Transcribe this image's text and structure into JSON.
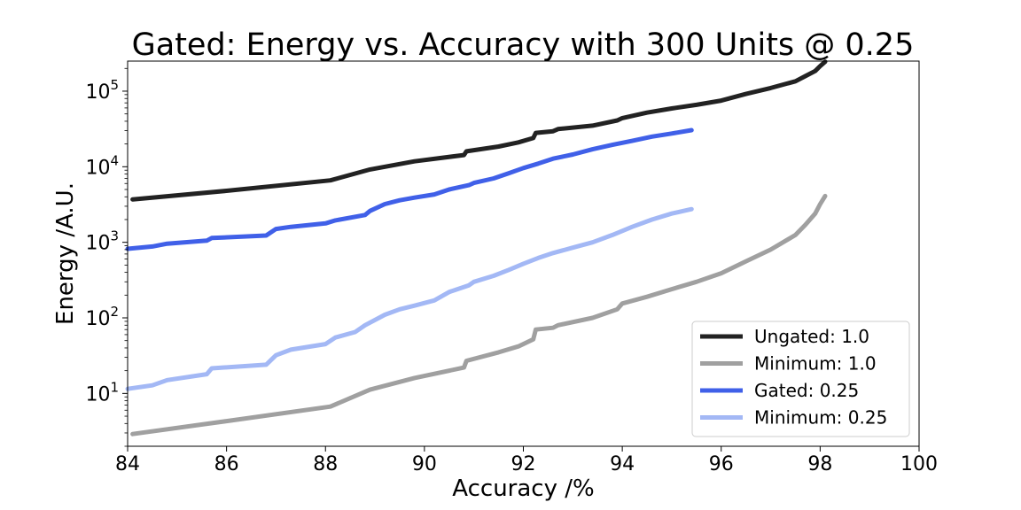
{
  "chart_data": {
    "type": "line",
    "title": "Gated: Energy vs. Accuracy with 300 Units @ 0.25",
    "xlabel": "Accuracy /%",
    "ylabel": "Energy /A.U.",
    "xlim": [
      84,
      100
    ],
    "ylim": [
      2,
      250000
    ],
    "yscale": "log",
    "grid": false,
    "legend_position": "lower-right",
    "x_ticks": [
      84,
      86,
      88,
      90,
      92,
      94,
      96,
      98,
      100
    ],
    "y_ticks": [
      {
        "value": 10,
        "base": "10",
        "exp": "1"
      },
      {
        "value": 100,
        "base": "10",
        "exp": "2"
      },
      {
        "value": 1000,
        "base": "10",
        "exp": "3"
      },
      {
        "value": 10000,
        "base": "10",
        "exp": "4"
      },
      {
        "value": 100000,
        "base": "10",
        "exp": "5"
      }
    ],
    "series": [
      {
        "name": "Ungated: 1.0",
        "color": "#222222",
        "points": [
          [
            84.1,
            3700
          ],
          [
            86.0,
            4800
          ],
          [
            88.1,
            6600
          ],
          [
            88.9,
            9200
          ],
          [
            89.8,
            11800
          ],
          [
            90.8,
            14300
          ],
          [
            90.85,
            16000
          ],
          [
            91.5,
            18500
          ],
          [
            91.9,
            21000
          ],
          [
            92.2,
            24000
          ],
          [
            92.25,
            28000
          ],
          [
            92.6,
            29500
          ],
          [
            92.7,
            31500
          ],
          [
            93.4,
            35000
          ],
          [
            93.9,
            41000
          ],
          [
            94.0,
            44000
          ],
          [
            94.5,
            52000
          ],
          [
            95.0,
            59000
          ],
          [
            95.5,
            66000
          ],
          [
            96.0,
            75000
          ],
          [
            96.5,
            92000
          ],
          [
            97.0,
            110000
          ],
          [
            97.5,
            135000
          ],
          [
            97.7,
            158000
          ],
          [
            97.9,
            185000
          ],
          [
            98.0,
            215000
          ],
          [
            98.1,
            245000
          ]
        ]
      },
      {
        "name": "Minimum: 1.0",
        "color": "#a0a0a0",
        "points": [
          [
            84.1,
            2.9
          ],
          [
            86.0,
            4.3
          ],
          [
            88.1,
            6.7
          ],
          [
            88.9,
            11.2
          ],
          [
            89.8,
            16.0
          ],
          [
            90.8,
            22.0
          ],
          [
            90.85,
            27.0
          ],
          [
            91.5,
            35.0
          ],
          [
            91.9,
            42.0
          ],
          [
            92.2,
            52.0
          ],
          [
            92.25,
            70.0
          ],
          [
            92.6,
            74.0
          ],
          [
            92.7,
            80.0
          ],
          [
            93.4,
            100.0
          ],
          [
            93.9,
            130.0
          ],
          [
            94.0,
            155.0
          ],
          [
            94.5,
            190.0
          ],
          [
            95.0,
            240.0
          ],
          [
            95.5,
            300.0
          ],
          [
            96.0,
            390.0
          ],
          [
            96.5,
            560.0
          ],
          [
            97.0,
            800.0
          ],
          [
            97.5,
            1250.0
          ],
          [
            97.7,
            1700.0
          ],
          [
            97.9,
            2400.0
          ],
          [
            98.0,
            3200.0
          ],
          [
            98.1,
            4100.0
          ]
        ]
      },
      {
        "name": "Gated: 0.25",
        "color": "#4060e8",
        "points": [
          [
            84.0,
            820
          ],
          [
            84.5,
            880
          ],
          [
            84.8,
            960
          ],
          [
            85.6,
            1050
          ],
          [
            85.7,
            1140
          ],
          [
            86.8,
            1230
          ],
          [
            87.0,
            1500
          ],
          [
            87.3,
            1600
          ],
          [
            88.0,
            1780
          ],
          [
            88.2,
            1950
          ],
          [
            88.8,
            2300
          ],
          [
            88.9,
            2600
          ],
          [
            89.2,
            3200
          ],
          [
            89.5,
            3600
          ],
          [
            89.8,
            3900
          ],
          [
            90.2,
            4300
          ],
          [
            90.5,
            5000
          ],
          [
            90.9,
            5700
          ],
          [
            91.0,
            6100
          ],
          [
            91.4,
            7000
          ],
          [
            91.7,
            8200
          ],
          [
            92.0,
            9600
          ],
          [
            92.3,
            11000
          ],
          [
            92.6,
            12800
          ],
          [
            93.0,
            14500
          ],
          [
            93.4,
            17000
          ],
          [
            93.8,
            19500
          ],
          [
            94.2,
            22000
          ],
          [
            94.6,
            25000
          ],
          [
            95.0,
            27500
          ],
          [
            95.4,
            30500
          ]
        ]
      },
      {
        "name": "Minimum: 0.25",
        "color": "#a3b8f5",
        "points": [
          [
            84.0,
            11.5
          ],
          [
            84.5,
            12.8
          ],
          [
            84.8,
            15.0
          ],
          [
            85.6,
            18.0
          ],
          [
            85.7,
            21.5
          ],
          [
            86.8,
            24.0
          ],
          [
            87.0,
            32.0
          ],
          [
            87.3,
            38.0
          ],
          [
            88.0,
            45.0
          ],
          [
            88.2,
            55.0
          ],
          [
            88.6,
            65.0
          ],
          [
            88.8,
            80.0
          ],
          [
            89.2,
            110.0
          ],
          [
            89.5,
            130.0
          ],
          [
            89.8,
            145.0
          ],
          [
            90.2,
            170.0
          ],
          [
            90.5,
            220.0
          ],
          [
            90.9,
            270.0
          ],
          [
            91.0,
            300.0
          ],
          [
            91.4,
            360.0
          ],
          [
            91.7,
            430.0
          ],
          [
            92.0,
            520.0
          ],
          [
            92.3,
            620.0
          ],
          [
            92.6,
            720.0
          ],
          [
            93.0,
            850.0
          ],
          [
            93.4,
            1000.0
          ],
          [
            93.8,
            1250.0
          ],
          [
            94.2,
            1600.0
          ],
          [
            94.6,
            2000.0
          ],
          [
            95.0,
            2400.0
          ],
          [
            95.4,
            2750.0
          ]
        ]
      }
    ]
  }
}
